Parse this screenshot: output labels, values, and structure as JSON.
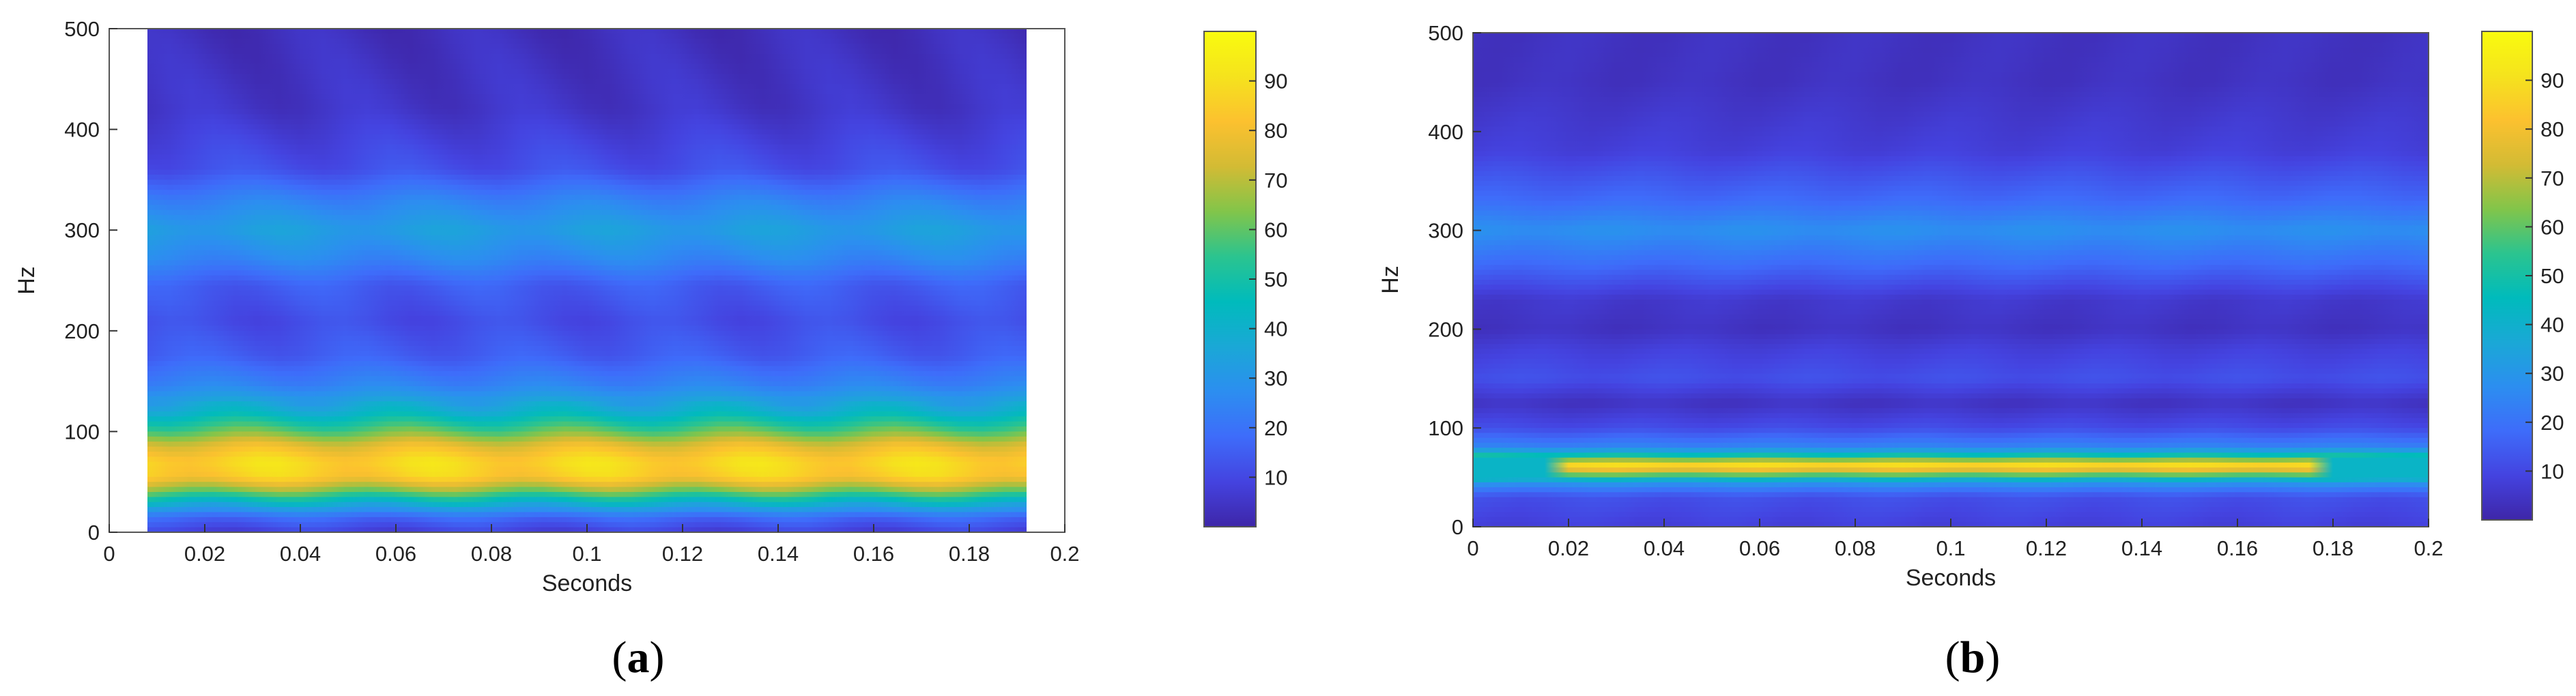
{
  "colors": {
    "colormap": [
      "#3e26a8",
      "#4443e0",
      "#3e6cfa",
      "#2c8ef0",
      "#1aa8d6",
      "#00bbbc",
      "#2bc48f",
      "#82c54a",
      "#d3bb34",
      "#fcc12f",
      "#f5e31d",
      "#f9fb0e"
    ]
  },
  "chart_data": [
    {
      "type": "heatmap",
      "caption": {
        "open": "(",
        "letter": "a",
        "close": ")"
      },
      "xlabel": "Seconds",
      "ylabel": "Hz",
      "xlim": [
        0,
        0.2
      ],
      "ylim": [
        0,
        500
      ],
      "xticks": [
        "0",
        "0.02",
        "0.04",
        "0.06",
        "0.08",
        "0.1",
        "0.12",
        "0.14",
        "0.16",
        "0.18",
        "0.2"
      ],
      "yticks": [
        "0",
        "100",
        "200",
        "300",
        "400",
        "500"
      ],
      "data_xrange": [
        0.008,
        0.192
      ],
      "colorbar": {
        "ticks": [
          "10",
          "20",
          "30",
          "40",
          "50",
          "60",
          "70",
          "80",
          "90"
        ],
        "range": [
          0,
          100
        ]
      },
      "frequency_profile": [
        {
          "hz": 0,
          "value": 8
        },
        {
          "hz": 15,
          "value": 18
        },
        {
          "hz": 30,
          "value": 42
        },
        {
          "hz": 42,
          "value": 65
        },
        {
          "hz": 55,
          "value": 85
        },
        {
          "hz": 70,
          "value": 88
        },
        {
          "hz": 85,
          "value": 78
        },
        {
          "hz": 100,
          "value": 60
        },
        {
          "hz": 120,
          "value": 40
        },
        {
          "hz": 145,
          "value": 25
        },
        {
          "hz": 175,
          "value": 15
        },
        {
          "hz": 210,
          "value": 11
        },
        {
          "hz": 245,
          "value": 15
        },
        {
          "hz": 270,
          "value": 25
        },
        {
          "hz": 300,
          "value": 33
        },
        {
          "hz": 330,
          "value": 24
        },
        {
          "hz": 360,
          "value": 12
        },
        {
          "hz": 420,
          "value": 5
        },
        {
          "hz": 500,
          "value": 3
        }
      ],
      "time_modulation": {
        "period_s": 0.034,
        "amplitude": 10
      }
    },
    {
      "type": "heatmap",
      "caption": {
        "open": "(",
        "letter": "b",
        "close": ")"
      },
      "xlabel": "Seconds",
      "ylabel": "Hz",
      "xlim": [
        0,
        0.2
      ],
      "ylim": [
        0,
        500
      ],
      "xticks": [
        "0",
        "0.02",
        "0.04",
        "0.06",
        "0.08",
        "0.1",
        "0.12",
        "0.14",
        "0.16",
        "0.18",
        "0.2"
      ],
      "yticks": [
        "0",
        "100",
        "200",
        "300",
        "400",
        "500"
      ],
      "data_xrange": [
        0,
        0.2
      ],
      "colorbar": {
        "ticks": [
          "10",
          "20",
          "30",
          "40",
          "50",
          "60",
          "70",
          "80",
          "90"
        ],
        "range": [
          0,
          100
        ]
      },
      "frequency_profile": [
        {
          "hz": 0,
          "value": 8
        },
        {
          "hz": 30,
          "value": 12
        },
        {
          "hz": 45,
          "value": 30
        },
        {
          "hz": 55,
          "value": 70
        },
        {
          "hz": 62,
          "value": 90
        },
        {
          "hz": 70,
          "value": 55
        },
        {
          "hz": 80,
          "value": 25
        },
        {
          "hz": 100,
          "value": 11
        },
        {
          "hz": 125,
          "value": 4
        },
        {
          "hz": 150,
          "value": 12
        },
        {
          "hz": 180,
          "value": 8
        },
        {
          "hz": 200,
          "value": 4
        },
        {
          "hz": 230,
          "value": 6
        },
        {
          "hz": 265,
          "value": 18
        },
        {
          "hz": 300,
          "value": 28
        },
        {
          "hz": 330,
          "value": 18
        },
        {
          "hz": 380,
          "value": 8
        },
        {
          "hz": 450,
          "value": 4
        },
        {
          "hz": 500,
          "value": 4
        }
      ],
      "band_time_range": [
        0.02,
        0.18
      ],
      "time_modulation": {
        "period_s": 0.006,
        "amplitude": 4
      }
    }
  ]
}
